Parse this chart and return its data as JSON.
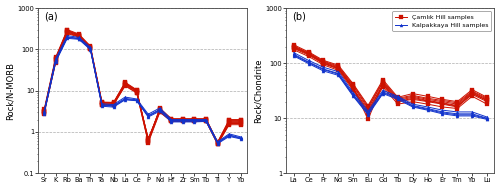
{
  "panel_a": {
    "xlabel_elements": [
      "Sr",
      "K",
      "Rb",
      "Ba",
      "Th",
      "Ta",
      "Nb",
      "La",
      "Ce",
      "P",
      "Nd",
      "Hf",
      "Zr",
      "Sm",
      "Tb",
      "Ti",
      "Y",
      "Yb"
    ],
    "ylabel": "Rock/N-MORB",
    "label": "(a)",
    "ylim": [
      0.1,
      1000
    ],
    "red_series": [
      [
        3.0,
        60,
        280,
        220,
        110,
        5.0,
        5.0,
        15.0,
        10.0,
        0.65,
        3.5,
        2.0,
        2.0,
        2.0,
        2.0,
        0.55,
        1.8,
        1.8
      ],
      [
        3.2,
        55,
        260,
        210,
        105,
        4.8,
        4.8,
        14.0,
        9.5,
        0.7,
        3.2,
        1.9,
        1.9,
        1.9,
        1.9,
        0.52,
        1.6,
        1.6
      ],
      [
        3.5,
        65,
        300,
        235,
        120,
        5.3,
        5.2,
        16.0,
        10.5,
        0.6,
        3.8,
        2.1,
        2.1,
        2.1,
        2.1,
        0.57,
        2.0,
        2.0
      ],
      [
        2.8,
        50,
        240,
        200,
        100,
        4.5,
        4.5,
        13.5,
        9.0,
        0.55,
        3.0,
        1.8,
        1.8,
        1.8,
        1.8,
        0.5,
        1.5,
        1.5
      ],
      [
        3.3,
        58,
        270,
        215,
        112,
        5.1,
        5.0,
        14.5,
        9.8,
        0.68,
        3.4,
        1.95,
        1.95,
        1.95,
        2.0,
        0.53,
        1.7,
        1.7
      ],
      [
        3.1,
        62,
        290,
        225,
        115,
        5.2,
        5.1,
        15.5,
        10.2,
        0.62,
        3.6,
        2.05,
        2.05,
        2.05,
        2.05,
        0.56,
        1.9,
        1.9
      ],
      [
        2.9,
        48,
        250,
        205,
        102,
        4.6,
        4.6,
        13.0,
        8.8,
        0.58,
        3.1,
        1.85,
        1.85,
        1.85,
        1.85,
        0.51,
        1.6,
        1.6
      ]
    ],
    "blue_series": [
      [
        3.0,
        55,
        200,
        185,
        105,
        4.5,
        4.3,
        6.5,
        6.0,
        2.5,
        3.5,
        1.9,
        1.9,
        1.9,
        1.9,
        0.55,
        0.85,
        0.72
      ],
      [
        2.8,
        50,
        185,
        175,
        98,
        4.2,
        4.0,
        6.0,
        5.7,
        2.3,
        3.2,
        1.75,
        1.75,
        1.75,
        1.8,
        0.52,
        0.78,
        0.68
      ],
      [
        3.2,
        60,
        215,
        195,
        112,
        4.8,
        4.6,
        7.0,
        6.3,
        2.7,
        3.8,
        2.0,
        2.0,
        2.0,
        2.0,
        0.58,
        0.9,
        0.76
      ],
      [
        2.9,
        52,
        195,
        180,
        102,
        4.4,
        4.2,
        6.2,
        5.8,
        2.4,
        3.4,
        1.82,
        1.82,
        1.82,
        1.85,
        0.54,
        0.82,
        0.7
      ]
    ]
  },
  "panel_b": {
    "xlabel_elements": [
      "La",
      "Ce",
      "Pr",
      "Nd",
      "Sm",
      "Eu",
      "Gd",
      "Tb",
      "Dy",
      "Ho",
      "Er",
      "Tm",
      "Yb",
      "Lu"
    ],
    "ylabel": "Rock/Chondrite",
    "label": "(b)",
    "ylim": [
      1,
      1000
    ],
    "red_series": [
      [
        200,
        150,
        105,
        85,
        38,
        15,
        45,
        22,
        25,
        22,
        20,
        18,
        30,
        22
      ],
      [
        185,
        140,
        98,
        78,
        34,
        13,
        40,
        20,
        22,
        20,
        18,
        16,
        27,
        20
      ],
      [
        215,
        160,
        112,
        92,
        42,
        17,
        50,
        24,
        28,
        25,
        22,
        20,
        33,
        24
      ],
      [
        195,
        148,
        102,
        82,
        36,
        9.5,
        43,
        21,
        24,
        21,
        19,
        17,
        29,
        21
      ],
      [
        175,
        132,
        93,
        74,
        32,
        12,
        37,
        18,
        20,
        18,
        16,
        15,
        25,
        18
      ],
      [
        205,
        155,
        108,
        88,
        40,
        16,
        47,
        23,
        26,
        23,
        21,
        19,
        31,
        23
      ],
      [
        190,
        145,
        100,
        80,
        35,
        14,
        41,
        20,
        23,
        20.5,
        18.5,
        16.5,
        28,
        21
      ]
    ],
    "blue_series": [
      [
        145,
        105,
        78,
        65,
        27,
        12.5,
        30,
        24,
        17,
        15,
        13,
        12,
        12,
        10
      ],
      [
        135,
        98,
        72,
        60,
        25,
        11.5,
        28,
        22,
        16,
        14,
        12,
        11,
        11,
        9.5
      ],
      [
        155,
        112,
        84,
        70,
        29,
        13.5,
        32,
        25,
        18,
        16,
        14,
        13,
        13,
        10.5
      ],
      [
        140,
        102,
        76,
        63,
        26,
        12.0,
        29,
        23,
        16.5,
        14.5,
        12.5,
        11.5,
        11.5,
        9.8
      ]
    ]
  },
  "red_color": "#cc1100",
  "blue_color": "#1133cc",
  "line_width": 0.7,
  "marker_size": 2.2,
  "bg_color": "#ffffff",
  "grid_color": "#999999",
  "legend_red_label": "Çamlık Hill samples",
  "legend_blue_label": "Kalpakkaya Hill samples"
}
